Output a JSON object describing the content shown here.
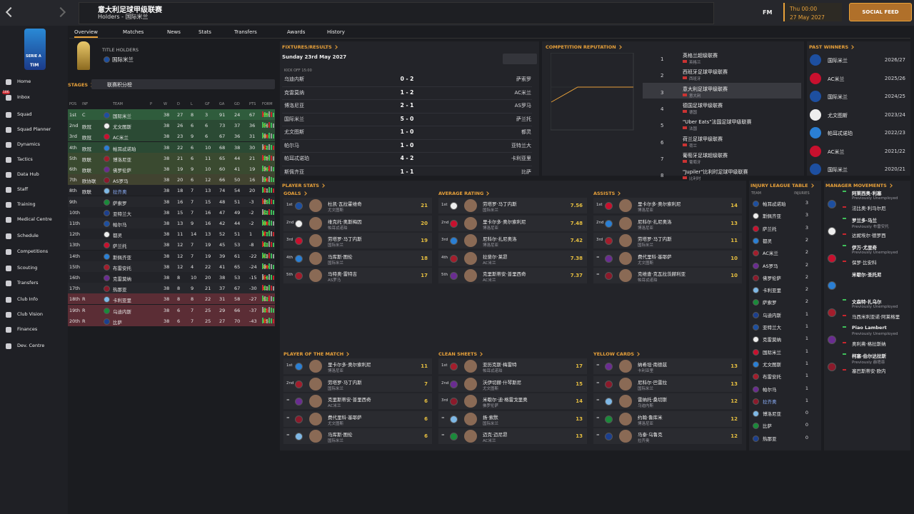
{
  "topbar": {
    "title": "意大利足球甲级联赛",
    "subtitle": "Holders - 国际米兰",
    "brand": "FM",
    "time": "Thu 00:00",
    "date": "27 May 2027",
    "social": "SOCIAL FEED"
  },
  "sidebar": {
    "logo": [
      "SERIE A",
      "TIM"
    ],
    "badge": "186",
    "items": [
      "Home",
      "Inbox",
      "Squad",
      "Squad Planner",
      "Dynamics",
      "Tactics",
      "Data Hub",
      "Staff",
      "Training",
      "Medical Centre",
      "Schedule",
      "Competitions",
      "Scouting",
      "Transfers",
      "Club Info",
      "Club Vision",
      "Finances",
      "Dev. Centre"
    ]
  },
  "tabs": [
    "Overview",
    "Matches",
    "News",
    "Stats",
    "Transfers",
    "Awards",
    "History"
  ],
  "holders": {
    "label": "TITLE HOLDERS",
    "team": "国际米兰"
  },
  "stages": {
    "label": "STAGES",
    "select": "联赛积分榜"
  },
  "league": {
    "headers": [
      "POS",
      "INF",
      "TEAM",
      "P",
      "W",
      "D",
      "L",
      "GF",
      "GA",
      "GD",
      "PTS",
      "FORM"
    ],
    "rows": [
      [
        "1st",
        "C",
        "国际米兰",
        38,
        27,
        8,
        3,
        91,
        24,
        67,
        89
      ],
      [
        "2nd",
        "欧冠",
        "尤文图斯",
        38,
        26,
        6,
        6,
        73,
        37,
        36,
        84
      ],
      [
        "3rd",
        "欧冠",
        "AC米兰",
        38,
        23,
        9,
        6,
        67,
        36,
        31,
        78
      ],
      [
        "4th",
        "欧冠",
        "帕耳忒诺珀",
        38,
        22,
        6,
        10,
        68,
        38,
        30,
        72
      ],
      [
        "5th",
        "欧联",
        "博洛尼亚",
        38,
        21,
        6,
        11,
        65,
        44,
        21,
        69
      ],
      [
        "6th",
        "欧联",
        "佛罗伦萨",
        38,
        19,
        9,
        10,
        60,
        41,
        19,
        66
      ],
      [
        "7th",
        "欧协联",
        "AS罗马",
        38,
        20,
        6,
        12,
        66,
        50,
        16,
        66
      ],
      [
        "8th",
        "欧联",
        "拉齐奥",
        38,
        18,
        7,
        13,
        74,
        54,
        20,
        61
      ],
      [
        "9th",
        null,
        "萨索罗",
        38,
        16,
        7,
        15,
        48,
        51,
        -3,
        55
      ],
      [
        "10th",
        null,
        "亚特兰大",
        38,
        15,
        7,
        16,
        47,
        49,
        -2,
        52
      ],
      [
        "11th",
        null,
        "帕尔马",
        38,
        13,
        9,
        16,
        42,
        44,
        -2,
        48
      ],
      [
        "12th",
        null,
        "都灵",
        38,
        11,
        14,
        13,
        52,
        51,
        1,
        47
      ],
      [
        "13th",
        null,
        "萨兰托",
        38,
        12,
        7,
        19,
        45,
        53,
        -8,
        43
      ],
      [
        "14th",
        null,
        "斯佩齐亚",
        38,
        12,
        7,
        19,
        39,
        61,
        -22,
        43
      ],
      [
        "15th",
        null,
        "布雷安托",
        38,
        12,
        4,
        22,
        41,
        65,
        -24,
        40
      ],
      [
        "16th",
        null,
        "克雷莫纳",
        38,
        8,
        10,
        20,
        38,
        53,
        -15,
        34
      ],
      [
        "17th",
        null,
        "热那亚",
        38,
        8,
        9,
        21,
        37,
        67,
        -30,
        33
      ],
      [
        "18th",
        "R",
        "卡利亚里",
        38,
        8,
        8,
        22,
        31,
        58,
        -27,
        32
      ],
      [
        "19th",
        "R",
        "乌迪内斯",
        38,
        6,
        7,
        25,
        29,
        66,
        -37,
        25
      ],
      [
        "20th",
        "R",
        "比萨",
        38,
        6,
        7,
        25,
        27,
        70,
        -43,
        25
      ]
    ]
  },
  "fixtures": {
    "title": "FIXTURES/RESULTS",
    "date": "Sunday 23rd May 2027",
    "kickoff": "KICK OFF 15:00",
    "matches": [
      [
        "乌迪内斯",
        "0 - 2",
        "萨索罗"
      ],
      [
        "克雷莫纳",
        "1 - 2",
        "AC米兰"
      ],
      [
        "博洛尼亚",
        "2 - 1",
        "AS罗马"
      ],
      [
        "国际米兰",
        "5 - 0",
        "萨兰托"
      ],
      [
        "尤文图斯",
        "1 - 0",
        "都灵"
      ],
      [
        "帕尔马",
        "1 - 0",
        "亚特兰大"
      ],
      [
        "帕耳忒诺珀",
        "4 - 2",
        "卡利亚里"
      ],
      [
        "斯佩齐亚",
        "1 - 1",
        "比萨"
      ]
    ]
  },
  "reputation": {
    "title": "COMPETITION REPUTATION",
    "rows": [
      [
        1,
        "英格兰超级联赛",
        "英格兰"
      ],
      [
        2,
        "西班牙足球甲级联赛",
        "西班牙"
      ],
      [
        3,
        "意大利足球甲级联赛",
        "意大利"
      ],
      [
        4,
        "德国足球甲级联赛",
        "德国"
      ],
      [
        5,
        "\"Uber Eats\"法国足球甲级联赛",
        "法国"
      ],
      [
        6,
        "荷兰足球甲级联赛",
        "荷兰"
      ],
      [
        7,
        "葡萄牙足球超级联赛",
        "葡萄牙"
      ],
      [
        8,
        "\"Jupiler\"比利时足球甲级联赛",
        "比利时"
      ]
    ]
  },
  "past_winners": {
    "title": "PAST WINNERS",
    "rows": [
      [
        "国际米兰",
        "2026/27"
      ],
      [
        "AC米兰",
        "2025/26"
      ],
      [
        "国际米兰",
        "2024/25"
      ],
      [
        "尤文图斯",
        "2023/24"
      ],
      [
        "帕耳忒诺珀",
        "2022/23"
      ],
      [
        "AC米兰",
        "2021/22"
      ],
      [
        "国际米兰",
        "2020/21"
      ]
    ]
  },
  "player_stats": {
    "title": "PLAYER STATS",
    "blocks": [
      {
        "title": "GOALS",
        "rows": [
          [
            "1st",
            "杜凯·瓦拉霍维奇",
            "尤文图斯",
            21
          ],
          [
            "2nd",
            "维克托·奥斯梅因",
            "帕耳忒诺珀",
            20
          ],
          [
            "3rd",
            "劳塔罗·马丁内斯",
            "国际米兰",
            19
          ],
          [
            "4th",
            "马库斯·图伦",
            "国际米兰",
            18
          ],
          [
            "5th",
            "马特奥·雷特吉",
            "AS罗马",
            17
          ]
        ]
      },
      {
        "title": "AVERAGE RATING",
        "rows": [
          [
            "1st",
            "劳塔罗·马丁内斯",
            "国际米兰",
            7.56
          ],
          [
            "2nd",
            "里卡尔多·奥尔索利尼",
            "博洛尼亚",
            7.48
          ],
          [
            "3rd",
            "尼科尔·扎尼奥洛",
            "博洛尼亚",
            7.42
          ],
          [
            "4th",
            "拉斐尔·莱昂",
            "AC米兰",
            7.38
          ],
          [
            "5th",
            "克里斯蒂安·普里西奇",
            "AC米兰",
            7.37
          ]
        ]
      },
      {
        "title": "ASSISTS",
        "rows": [
          [
            "1st",
            "里卡尔多·奥尔索利尼",
            "博洛尼亚",
            14
          ],
          [
            "2nd",
            "尼科尔·扎尼奥洛",
            "博洛尼亚",
            13
          ],
          [
            "3rd",
            "劳塔罗·马丁内斯",
            "国际米兰",
            11
          ],
          [
            "=",
            "费代里科·基耶萨",
            "尤文图斯",
            10
          ],
          [
            "=",
            "克维查·克瓦拉茨赫利亚",
            "帕耳忒诺珀",
            10
          ]
        ]
      },
      {
        "title": "PLAYER OF THE MATCH",
        "rows": [
          [
            "1st",
            "里卡尔多·奥尔索利尼",
            "博洛尼亚",
            11
          ],
          [
            "2nd",
            "劳塔罗·马丁内斯",
            "国际米兰",
            7
          ],
          [
            "=",
            "克里斯蒂安·普里西奇",
            "AC米兰",
            6
          ],
          [
            "=",
            "费代里科·基耶萨",
            "尤文图斯",
            6
          ],
          [
            "=",
            "马库斯·图伦",
            "国际米兰",
            6
          ]
        ]
      },
      {
        "title": "CLEAN SHEETS",
        "rows": [
          [
            "1st",
            "亚历克斯·梅雷特",
            "帕耳忒诺珀",
            17
          ],
          [
            "2nd",
            "沃伊切赫·什琴斯尼",
            "尤文图斯",
            15
          ],
          [
            "3rd",
            "米歇尔·迪·格雷戈里奥",
            "佛罗伦萨",
            14
          ],
          [
            "=",
            "扬·索默",
            "国际米兰",
            13
          ],
          [
            "=",
            "迈克·迈尼昂",
            "AC米兰",
            13
          ]
        ]
      },
      {
        "title": "YELLOW CARDS",
        "rows": [
          [
            "=",
            "纳希坦·南德兹",
            "卡利亚里",
            13
          ],
          [
            "=",
            "尼科尔·巴雷拉",
            "国际米兰",
            13
          ],
          [
            "=",
            "雷纳托·桑切斯",
            "乌迪内斯",
            12
          ],
          [
            "=",
            "约翰·鲁库米",
            "博洛尼亚",
            12
          ],
          [
            "=",
            "马泰·乌鲁克",
            "拉齐奥",
            12
          ]
        ]
      }
    ]
  },
  "injuries": {
    "title": "INJURY LEAGUE TABLE",
    "headers": [
      "TEAM",
      "INJURIES"
    ],
    "rows": [
      [
        "帕耳忒诺珀",
        3
      ],
      [
        "斯佩齐亚",
        3
      ],
      [
        "萨兰托",
        3
      ],
      [
        "都灵",
        2
      ],
      [
        "AC米兰",
        2
      ],
      [
        "AS罗马",
        2
      ],
      [
        "佛罗伦萨",
        2
      ],
      [
        "卡利亚里",
        2
      ],
      [
        "萨索罗",
        2
      ],
      [
        "乌迪内斯",
        1
      ],
      [
        "亚特兰大",
        1
      ],
      [
        "克雷莫纳",
        1
      ],
      [
        "国际米兰",
        1
      ],
      [
        "尤文图斯",
        1
      ],
      [
        "布雷安托",
        1
      ],
      [
        "帕尔马",
        1
      ],
      [
        "拉齐奥",
        1
      ],
      [
        "博洛尼亚",
        0
      ],
      [
        "比萨",
        0
      ],
      [
        "热那亚",
        0
      ]
    ]
  },
  "managers": {
    "title": "MANAGER MOVEMENTS",
    "rows": [
      [
        "阿莱西奥·利塞",
        "Previously Unemployed",
        "法比奥·利马尔厄"
      ],
      [
        "罗兰多·马兰",
        "Previously 布雷安托",
        "达妮埃尔·德罗西"
      ],
      [
        "伊万·尤里奇",
        "Previously Unemployed",
        "保罗·比安科"
      ],
      [
        "米歇尔·圣托尼",
        null,
        null
      ],
      [
        "文森特·扎乌尔",
        "Previously Unemployed",
        "马西米利亚诺·阿莱格里"
      ],
      [
        "Piao Lambert",
        "Previously Unemployed",
        "奥利弗·格拉斯纳"
      ],
      [
        "柯塞·伯尔达拉斯",
        "Previously 赫塔菲",
        "塞巴斯蒂安·欧内"
      ]
    ]
  }
}
